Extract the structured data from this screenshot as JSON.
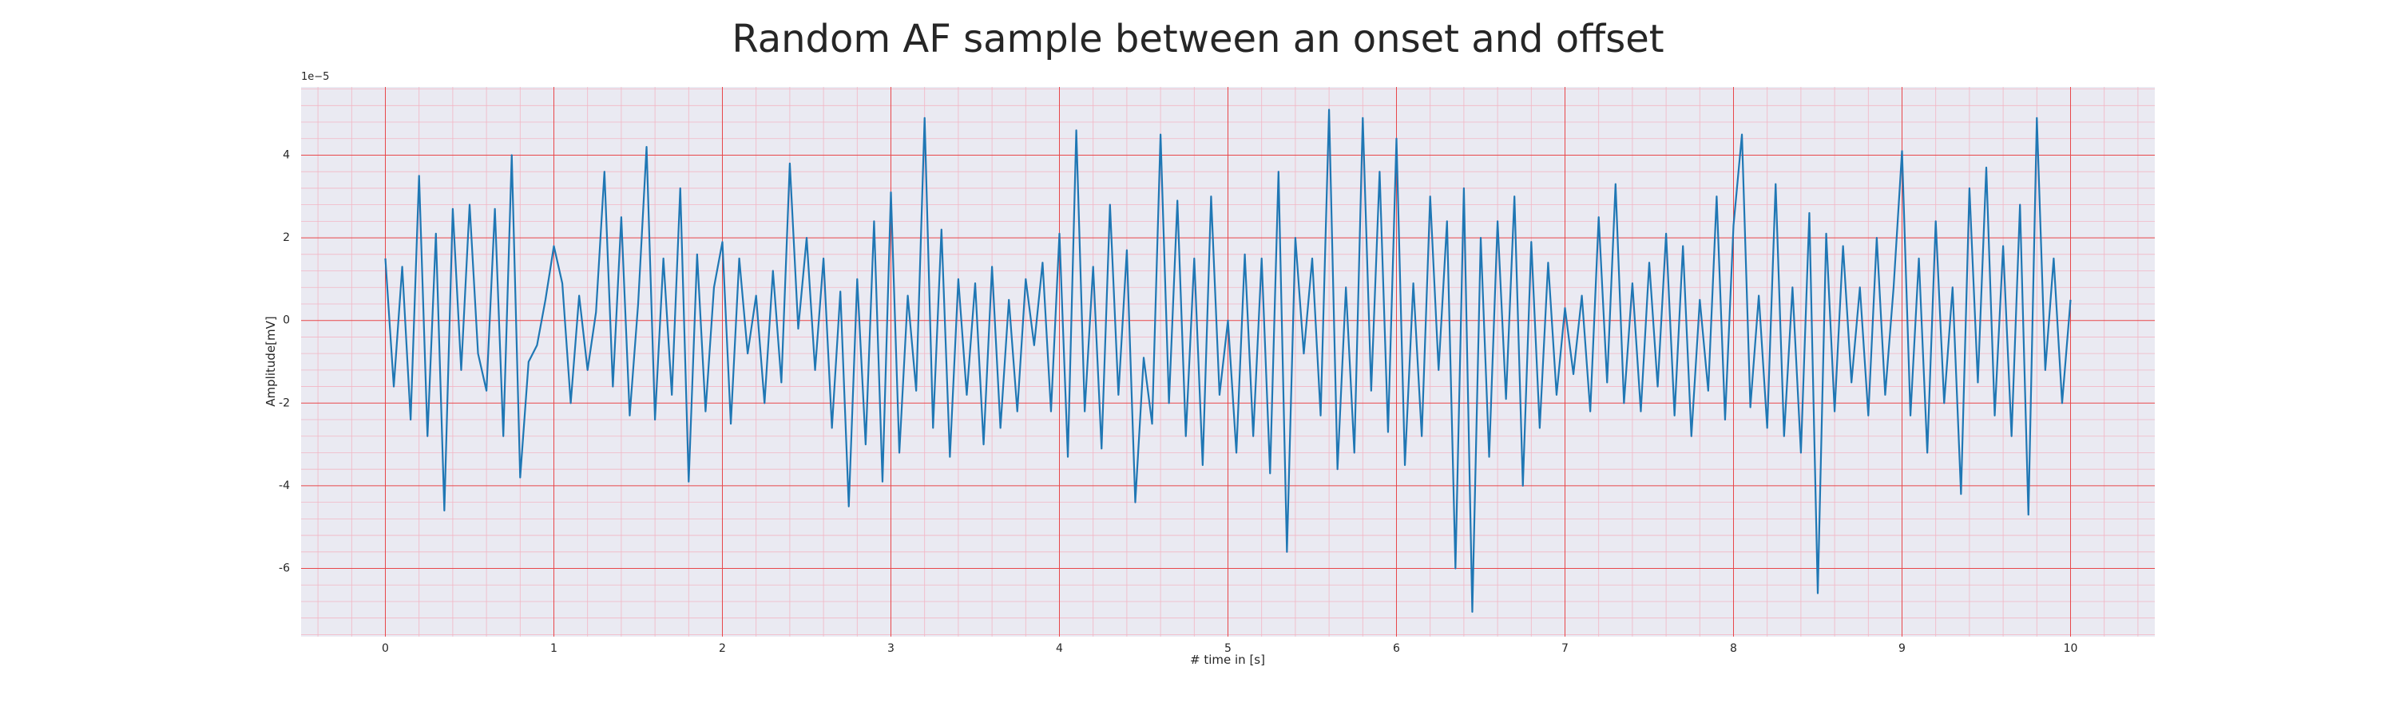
{
  "chart_data": {
    "type": "line",
    "title": "Random AF sample between an onset and offset",
    "xlabel": "# time in [s]",
    "ylabel": "Amplitude[mV]",
    "y_offset_label": "1e−5",
    "xlim": [
      -0.5,
      10.5
    ],
    "ylim": [
      -7.65,
      5.65
    ],
    "xticks": [
      0,
      1,
      2,
      3,
      4,
      5,
      6,
      7,
      8,
      9,
      10
    ],
    "yticks": [
      -6,
      -4,
      -2,
      0,
      2,
      4
    ],
    "grid": true,
    "grid_color": "#e8474a",
    "minor_grid_color": "#f2b6c4",
    "minor_divisions": 5,
    "background": "#eaeaf2",
    "series": [
      {
        "color": "#1f77b4",
        "x": [
          0,
          0.05,
          0.1,
          0.15,
          0.2,
          0.25,
          0.3,
          0.35,
          0.4,
          0.45,
          0.5,
          0.55,
          0.6,
          0.65,
          0.7,
          0.75,
          0.8,
          0.85,
          0.9,
          0.95,
          1,
          1.05,
          1.1,
          1.15,
          1.2,
          1.25,
          1.3,
          1.35,
          1.4,
          1.45,
          1.5,
          1.55,
          1.6,
          1.65,
          1.7,
          1.75,
          1.8,
          1.85,
          1.9,
          1.95,
          2,
          2.05,
          2.1,
          2.15,
          2.2,
          2.25,
          2.3,
          2.35,
          2.4,
          2.45,
          2.5,
          2.55,
          2.6,
          2.65,
          2.7,
          2.75,
          2.8,
          2.85,
          2.9,
          2.95,
          3,
          3.05,
          3.1,
          3.15,
          3.2,
          3.25,
          3.3,
          3.35,
          3.4,
          3.45,
          3.5,
          3.55,
          3.6,
          3.65,
          3.7,
          3.75,
          3.8,
          3.85,
          3.9,
          3.95,
          4,
          4.05,
          4.1,
          4.15,
          4.2,
          4.25,
          4.3,
          4.35,
          4.4,
          4.45,
          4.5,
          4.55,
          4.6,
          4.65,
          4.7,
          4.75,
          4.8,
          4.85,
          4.9,
          4.95,
          5,
          5.05,
          5.1,
          5.15,
          5.2,
          5.25,
          5.3,
          5.35,
          5.4,
          5.45,
          5.5,
          5.55,
          5.6,
          5.65,
          5.7,
          5.75,
          5.8,
          5.85,
          5.9,
          5.95,
          6,
          6.05,
          6.1,
          6.15,
          6.2,
          6.25,
          6.3,
          6.35,
          6.4,
          6.45,
          6.5,
          6.55,
          6.6,
          6.65,
          6.7,
          6.75,
          6.8,
          6.85,
          6.9,
          6.95,
          7,
          7.05,
          7.1,
          7.15,
          7.2,
          7.25,
          7.3,
          7.35,
          7.4,
          7.45,
          7.5,
          7.55,
          7.6,
          7.65,
          7.7,
          7.75,
          7.8,
          7.85,
          7.9,
          7.95,
          8,
          8.05,
          8.1,
          8.15,
          8.2,
          8.25,
          8.3,
          8.35,
          8.4,
          8.45,
          8.5,
          8.55,
          8.6,
          8.65,
          8.7,
          8.75,
          8.8,
          8.85,
          8.9,
          8.95,
          9,
          9.05,
          9.1,
          9.15,
          9.2,
          9.25,
          9.3,
          9.35,
          9.4,
          9.45,
          9.5,
          9.55,
          9.6,
          9.65,
          9.7,
          9.75,
          9.8,
          9.85,
          9.9,
          9.95,
          10
        ],
        "values": [
          1.5,
          -1.6,
          1.3,
          -2.4,
          3.5,
          -2.8,
          2.1,
          -4.6,
          2.7,
          -1.2,
          2.8,
          -0.8,
          -1.7,
          2.7,
          -2.8,
          4.0,
          -3.8,
          -1.0,
          -0.6,
          0.5,
          1.8,
          0.9,
          -2.0,
          0.6,
          -1.2,
          0.2,
          3.6,
          -1.6,
          2.5,
          -2.3,
          0.4,
          4.2,
          -2.4,
          1.5,
          -1.8,
          3.2,
          -3.9,
          1.6,
          -2.2,
          0.8,
          1.9,
          -2.5,
          1.5,
          -0.8,
          0.6,
          -2.0,
          1.2,
          -1.5,
          3.8,
          -0.2,
          2.0,
          -1.2,
          1.5,
          -2.6,
          0.7,
          -4.5,
          1.0,
          -3.0,
          2.4,
          -3.9,
          3.1,
          -3.2,
          0.6,
          -1.7,
          4.9,
          -2.6,
          2.2,
          -3.3,
          1.0,
          -1.8,
          0.9,
          -3.0,
          1.3,
          -2.6,
          0.5,
          -2.2,
          1.0,
          -0.6,
          1.4,
          -2.2,
          2.1,
          -3.3,
          4.6,
          -2.2,
          1.3,
          -3.1,
          2.8,
          -1.8,
          1.7,
          -4.4,
          -0.9,
          -2.5,
          4.5,
          -2.0,
          2.9,
          -2.8,
          1.5,
          -3.5,
          3.0,
          -1.8,
          0.0,
          -3.2,
          1.6,
          -2.8,
          1.5,
          -3.7,
          3.6,
          -5.6,
          2.0,
          -0.8,
          1.5,
          -2.3,
          5.1,
          -3.6,
          0.8,
          -3.2,
          4.9,
          -1.7,
          3.6,
          -2.7,
          4.4,
          -3.5,
          0.9,
          -2.8,
          3.0,
          -1.2,
          2.4,
          -6.0,
          3.2,
          -7.05,
          2.0,
          -3.3,
          2.4,
          -1.9,
          3.0,
          -4.0,
          1.9,
          -2.6,
          1.4,
          -1.8,
          0.3,
          -1.3,
          0.6,
          -2.2,
          2.5,
          -1.5,
          3.3,
          -2.0,
          0.9,
          -2.2,
          1.4,
          -1.6,
          2.1,
          -2.3,
          1.8,
          -2.8,
          0.5,
          -1.7,
          3.0,
          -2.4,
          2.3,
          4.5,
          -2.1,
          0.6,
          -2.6,
          3.3,
          -2.8,
          0.8,
          -3.2,
          2.6,
          -6.6,
          2.1,
          -2.2,
          1.8,
          -1.5,
          0.8,
          -2.3,
          2.0,
          -1.8,
          0.8,
          4.1,
          -2.3,
          1.5,
          -3.2,
          2.4,
          -2.0,
          0.8,
          -4.2,
          3.2,
          -1.5,
          3.7,
          -2.3,
          1.8,
          -2.8,
          2.8,
          -4.7,
          4.9,
          -1.2,
          1.5,
          -2.0,
          0.5
        ]
      }
    ]
  }
}
